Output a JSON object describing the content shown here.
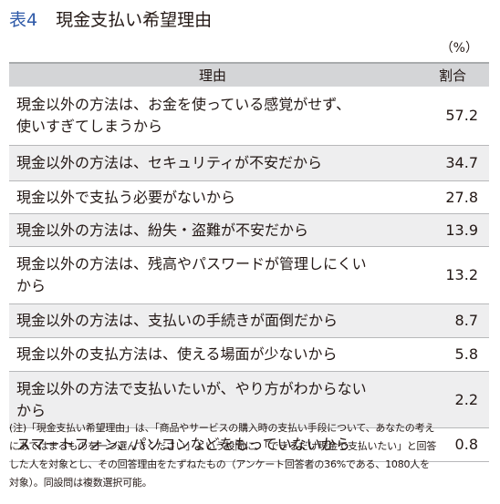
{
  "title": {
    "label": "表4",
    "text": "現金支払い希望理由"
  },
  "unit": "（%）",
  "table": {
    "headers": {
      "reason": "理由",
      "share": "割合"
    },
    "rows": [
      {
        "reason": [
          "現金以外の方法は、お金を使っている感覚がせず、",
          "使いすぎてしまうから"
        ],
        "share": "57.2"
      },
      {
        "reason": [
          "現金以外の方法は、セキュリティが不安だから"
        ],
        "share": "34.7"
      },
      {
        "reason": [
          "現金以外で支払う必要がないから"
        ],
        "share": "27.8"
      },
      {
        "reason": [
          "現金以外の方法は、紛失・盗難が不安だから"
        ],
        "share": "13.9"
      },
      {
        "reason": [
          "現金以外の方法は、残高やパスワードが管理しにくい",
          "から"
        ],
        "share": "13.2"
      },
      {
        "reason": [
          "現金以外の方法は、支払いの手続きが面倒だから"
        ],
        "share": "8.7"
      },
      {
        "reason": [
          "現金以外の支払方法は、使える場面が少ないから"
        ],
        "share": "5.8"
      },
      {
        "reason": [
          "現金以外の方法で支払いたいが、やり方がわからない",
          "から"
        ],
        "share": "2.2"
      },
      {
        "reason": [
          "スマートフォン、パソコンなどをもっていないから"
        ],
        "share": "0.8"
      }
    ]
  },
  "note": [
    "(注)「現金支払い希望理由」は、「商品やサービスの購入時の支払い手段について、あなたの考え",
    "にあてはまるものを一つ選んでください」という設問に、「できるだけ現金で支払いたい」と回答",
    "した人を対象とし、その回答理由をたずねたもの（アンケート回答者の36%である、1080人を",
    "対象）。同設問は複数選択可能。"
  ]
}
